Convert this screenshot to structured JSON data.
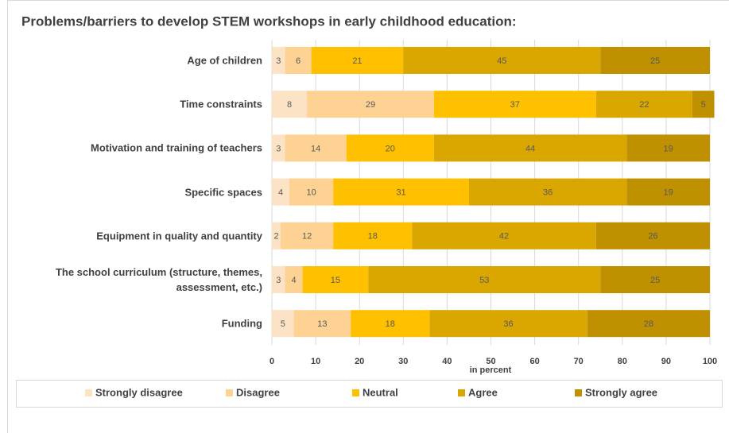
{
  "chart_data": {
    "type": "stacked_bar_horizontal",
    "title": "Problems/barriers to develop STEM workshops in early childhood education:",
    "x_label": "in percent",
    "categories": [
      "Age of children",
      "Time constraints",
      "Motivation and training of teachers",
      "Specific spaces",
      "Equipment in quality and quantity",
      "The school curriculum (structure, themes, assessment, etc.)",
      "Funding"
    ],
    "series": [
      {
        "name": "Strongly disagree",
        "color": "#fde3c6",
        "values": [
          3,
          8,
          3,
          4,
          2,
          3,
          5
        ]
      },
      {
        "name": "Disagree",
        "color": "#fdd293",
        "values": [
          6,
          29,
          14,
          10,
          12,
          4,
          13
        ]
      },
      {
        "name": "Neutral",
        "color": "#ffc000",
        "values": [
          21,
          37,
          20,
          31,
          18,
          15,
          18
        ]
      },
      {
        "name": "Agree",
        "color": "#daa600",
        "values": [
          45,
          22,
          44,
          36,
          42,
          53,
          36
        ]
      },
      {
        "name": "Strongly agree",
        "color": "#bf9000",
        "values": [
          25,
          5,
          19,
          19,
          26,
          25,
          28
        ]
      }
    ],
    "xlim": [
      0,
      100
    ],
    "xticks": [
      0,
      10,
      20,
      30,
      40,
      50,
      60,
      70,
      80,
      90,
      100
    ],
    "grid": true,
    "legend": "bottom"
  }
}
